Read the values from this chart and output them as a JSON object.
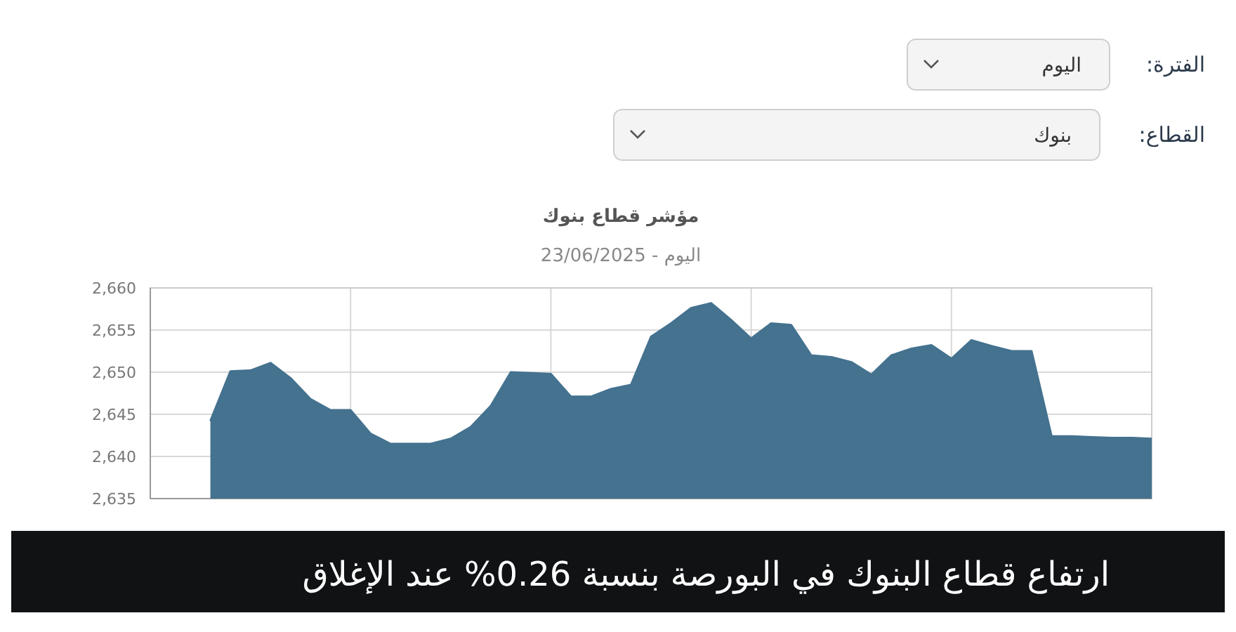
{
  "chart_data": {
    "type": "area",
    "title": "مؤشر قطاع بنوك",
    "subtitle": "اليوم - 23/06/2025",
    "annotations": [
      "الفترة:",
      "اليوم",
      "القطاع:",
      "بنوك",
      "ارتفاع قطاع البنوك في البورصة بنسبة 0.26% عند الإغلاق"
    ],
    "categories": [
      null,
      null,
      null,
      null,
      null,
      null,
      null,
      null,
      null,
      null,
      null,
      null,
      null,
      null,
      null,
      null,
      null,
      null,
      null,
      null,
      null,
      null,
      null,
      null,
      null,
      null,
      null,
      null,
      null,
      null,
      null,
      null,
      null,
      null,
      null,
      null,
      null,
      null,
      null,
      null,
      null,
      null,
      null,
      null,
      null,
      null,
      null,
      null,
      null,
      null,
      null
    ],
    "series": [
      {
        "color": "#44728f",
        "values": [
          null,
          null,
          null,
          2644.2,
          2650.1,
          2650.2,
          2651.1,
          2649.3,
          2646.8,
          2645.5,
          2645.5,
          2642.7,
          2641.5,
          2641.5,
          2641.5,
          2642.1,
          2643.5,
          2646.0,
          2650.0,
          2649.9,
          2649.8,
          2647.1,
          2647.1,
          2648.0,
          2648.5,
          2654.2,
          2655.8,
          2657.6,
          2658.2,
          2656.2,
          2654.0,
          2655.8,
          2655.6,
          2652.0,
          2651.8,
          2651.2,
          2649.7,
          2652.0,
          2652.8,
          2653.2,
          2651.6,
          2653.8,
          2653.1,
          2652.5,
          2652.5,
          2642.4,
          2642.4,
          2642.3,
          2642.2,
          2642.2,
          2642.1
        ]
      }
    ],
    "ylim": [
      2635,
      2660
    ],
    "yticks": [
      {
        "value": 2635,
        "label": "2,635"
      },
      {
        "value": 2640,
        "label": "2,640"
      },
      {
        "value": 2645,
        "label": "2,645"
      },
      {
        "value": 2650,
        "label": "2,650"
      },
      {
        "value": 2655,
        "label": "2,655"
      },
      {
        "value": 2660,
        "label": "2,660"
      }
    ],
    "grid": true,
    "marker": "none",
    "line_style": "solid"
  }
}
